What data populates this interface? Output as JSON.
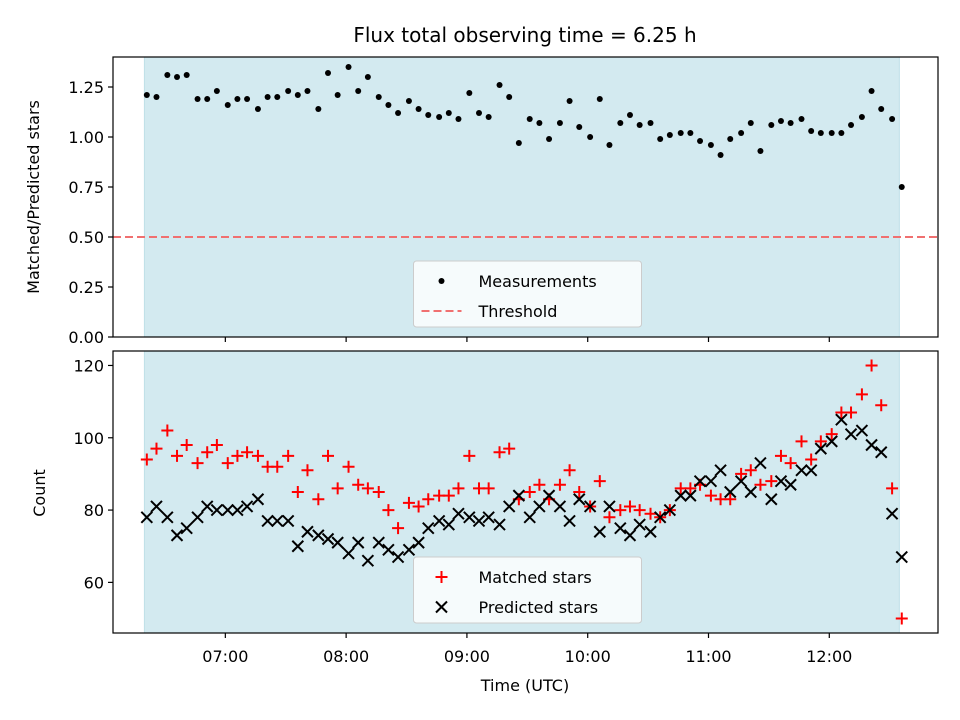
{
  "chart_data": [
    {
      "type": "scatter",
      "title": "Flux total observing time = 6.25 h",
      "xlabel": "",
      "ylabel": "Matched/Predicted stars",
      "xlim": [
        6.07,
        12.9
      ],
      "ylim": [
        0,
        1.4
      ],
      "ytick_labels": [
        "0.00",
        "0.25",
        "0.50",
        "0.75",
        "1.00",
        "1.25"
      ],
      "yticks": [
        0,
        0.25,
        0.5,
        0.75,
        1.0,
        1.25
      ],
      "xticks": [
        7,
        8,
        9,
        10,
        11,
        12
      ],
      "shaded_span": [
        6.33,
        12.58
      ],
      "shade_color": "#d3eaf0",
      "threshold": 0.5,
      "threshold_color": "#f07070",
      "series": [
        {
          "name": "Measurements",
          "color": "#000000",
          "marker": "dot",
          "x": [
            6.35,
            6.43,
            6.52,
            6.6,
            6.68,
            6.77,
            6.85,
            6.93,
            7.02,
            7.1,
            7.18,
            7.27,
            7.35,
            7.43,
            7.52,
            7.6,
            7.68,
            7.77,
            7.85,
            7.93,
            8.02,
            8.1,
            8.18,
            8.27,
            8.35,
            8.43,
            8.52,
            8.6,
            8.68,
            8.77,
            8.85,
            8.93,
            9.02,
            9.1,
            9.18,
            9.27,
            9.35,
            9.43,
            9.52,
            9.6,
            9.68,
            9.77,
            9.85,
            9.93,
            10.02,
            10.1,
            10.18,
            10.27,
            10.35,
            10.43,
            10.52,
            10.6,
            10.68,
            10.77,
            10.85,
            10.93,
            11.02,
            11.1,
            11.18,
            11.27,
            11.35,
            11.43,
            11.52,
            11.6,
            11.68,
            11.77,
            11.85,
            11.93,
            12.02,
            12.1,
            12.18,
            12.27,
            12.35,
            12.43,
            12.52,
            12.6
          ],
          "y": [
            1.21,
            1.2,
            1.31,
            1.3,
            1.31,
            1.19,
            1.19,
            1.23,
            1.16,
            1.19,
            1.19,
            1.14,
            1.2,
            1.2,
            1.23,
            1.21,
            1.23,
            1.14,
            1.32,
            1.21,
            1.35,
            1.23,
            1.3,
            1.2,
            1.16,
            1.12,
            1.18,
            1.14,
            1.11,
            1.1,
            1.12,
            1.09,
            1.22,
            1.12,
            1.1,
            1.26,
            1.2,
            0.97,
            1.09,
            1.07,
            0.99,
            1.07,
            1.18,
            1.05,
            1.0,
            1.19,
            0.96,
            1.07,
            1.11,
            1.06,
            1.07,
            0.99,
            1.01,
            1.02,
            1.02,
            0.98,
            0.96,
            0.91,
            0.99,
            1.02,
            1.07,
            0.93,
            1.06,
            1.08,
            1.07,
            1.09,
            1.03,
            1.02,
            1.02,
            1.02,
            1.06,
            1.1,
            1.23,
            1.14,
            1.09,
            0.75
          ]
        }
      ],
      "legend": [
        "Measurements",
        "Threshold"
      ],
      "legend_position": "lower-center"
    },
    {
      "type": "scatter",
      "title": "",
      "xlabel": "Time (UTC)",
      "ylabel": "Count",
      "xlim": [
        6.07,
        12.9
      ],
      "ylim": [
        46,
        124
      ],
      "yticks": [
        60,
        80,
        100,
        120
      ],
      "ytick_labels": [
        "60",
        "80",
        "100",
        "120"
      ],
      "xticks": [
        7,
        8,
        9,
        10,
        11,
        12
      ],
      "xtick_labels": [
        "07:00",
        "08:00",
        "09:00",
        "10:00",
        "11:00",
        "12:00"
      ],
      "shaded_span": [
        6.33,
        12.58
      ],
      "shade_color": "#d3eaf0",
      "series": [
        {
          "name": "Matched stars",
          "color": "#ff0000",
          "marker": "plus",
          "x": [
            6.35,
            6.43,
            6.52,
            6.6,
            6.68,
            6.77,
            6.85,
            6.93,
            7.02,
            7.1,
            7.18,
            7.27,
            7.35,
            7.43,
            7.52,
            7.6,
            7.68,
            7.77,
            7.85,
            7.93,
            8.02,
            8.1,
            8.18,
            8.27,
            8.35,
            8.43,
            8.52,
            8.6,
            8.68,
            8.77,
            8.85,
            8.93,
            9.02,
            9.1,
            9.18,
            9.27,
            9.35,
            9.43,
            9.52,
            9.6,
            9.68,
            9.77,
            9.85,
            9.93,
            10.02,
            10.1,
            10.18,
            10.27,
            10.35,
            10.43,
            10.52,
            10.6,
            10.68,
            10.77,
            10.85,
            10.93,
            11.02,
            11.1,
            11.18,
            11.27,
            11.35,
            11.43,
            11.52,
            11.6,
            11.68,
            11.77,
            11.85,
            11.93,
            12.02,
            12.1,
            12.18,
            12.27,
            12.35,
            12.43,
            12.52,
            12.6
          ],
          "y": [
            94,
            97,
            102,
            95,
            98,
            93,
            96,
            98,
            93,
            95,
            96,
            95,
            92,
            92,
            95,
            85,
            91,
            83,
            95,
            86,
            92,
            87,
            86,
            85,
            80,
            75,
            82,
            81,
            83,
            84,
            84,
            86,
            95,
            86,
            86,
            96,
            97,
            83,
            85,
            87,
            83,
            87,
            91,
            85,
            81,
            88,
            78,
            80,
            81,
            80,
            79,
            78,
            80,
            86,
            86,
            87,
            84,
            83,
            83,
            90,
            91,
            87,
            88,
            95,
            93,
            99,
            94,
            99,
            101,
            107,
            107,
            112,
            120,
            109,
            86,
            50
          ]
        },
        {
          "name": "Predicted stars",
          "color": "#000000",
          "marker": "x",
          "x": [
            6.35,
            6.43,
            6.52,
            6.6,
            6.68,
            6.77,
            6.85,
            6.93,
            7.02,
            7.1,
            7.18,
            7.27,
            7.35,
            7.43,
            7.52,
            7.6,
            7.68,
            7.77,
            7.85,
            7.93,
            8.02,
            8.1,
            8.18,
            8.27,
            8.35,
            8.43,
            8.52,
            8.6,
            8.68,
            8.77,
            8.85,
            8.93,
            9.02,
            9.1,
            9.18,
            9.27,
            9.35,
            9.43,
            9.52,
            9.6,
            9.68,
            9.77,
            9.85,
            9.93,
            10.02,
            10.1,
            10.18,
            10.27,
            10.35,
            10.43,
            10.52,
            10.6,
            10.68,
            10.77,
            10.85,
            10.93,
            11.02,
            11.1,
            11.18,
            11.27,
            11.35,
            11.43,
            11.52,
            11.6,
            11.68,
            11.77,
            11.85,
            11.93,
            12.02,
            12.1,
            12.18,
            12.27,
            12.35,
            12.43,
            12.52,
            12.6
          ],
          "y": [
            78,
            81,
            78,
            73,
            75,
            78,
            81,
            80,
            80,
            80,
            81,
            83,
            77,
            77,
            77,
            70,
            74,
            73,
            72,
            71,
            68,
            71,
            66,
            71,
            69,
            67,
            69,
            71,
            75,
            77,
            76,
            79,
            78,
            77,
            78,
            76,
            81,
            84,
            78,
            81,
            84,
            81,
            77,
            83,
            81,
            74,
            81,
            75,
            73,
            76,
            74,
            78,
            80,
            84,
            84,
            88,
            88,
            91,
            85,
            88,
            85,
            93,
            83,
            88,
            87,
            91,
            91,
            97,
            99,
            105,
            101,
            102,
            98,
            96,
            79,
            67
          ]
        }
      ],
      "legend": [
        "Matched stars",
        "Predicted stars"
      ],
      "legend_position": "lower-center"
    }
  ]
}
